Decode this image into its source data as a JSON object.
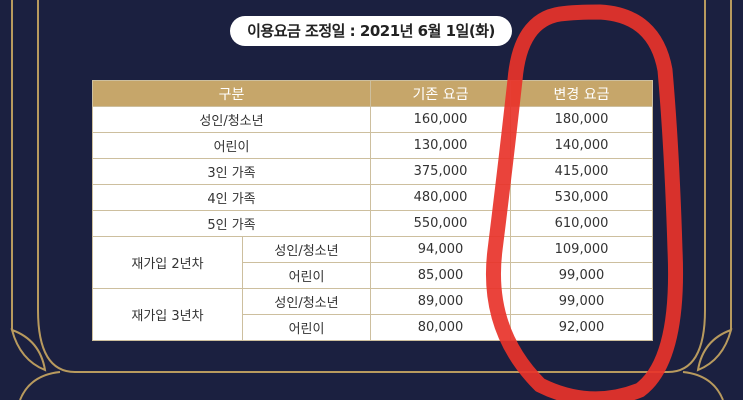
{
  "header": {
    "title": "이용요금 조정일 : 2021년 6월 1일(화)"
  },
  "table": {
    "columns": [
      "구분",
      "기존 요금",
      "변경 요금"
    ],
    "rows": [
      [
        "성인/청소년",
        "160,000",
        "180,000"
      ],
      [
        "어린이",
        "130,000",
        "140,000"
      ],
      [
        "3인 가족",
        "375,000",
        "415,000"
      ],
      [
        "4인 가족",
        "480,000",
        "530,000"
      ],
      [
        "5인 가족",
        "550,000",
        "610,000"
      ]
    ],
    "groups": [
      {
        "label": "재가입 2년차",
        "rows": [
          [
            "성인/청소년",
            "94,000",
            "109,000"
          ],
          [
            "어린이",
            "85,000",
            "99,000"
          ]
        ]
      },
      {
        "label": "재가입 3년차",
        "rows": [
          [
            "성인/청소년",
            "89,000",
            "99,000"
          ],
          [
            "어린이",
            "80,000",
            "92,000"
          ]
        ]
      }
    ]
  }
}
